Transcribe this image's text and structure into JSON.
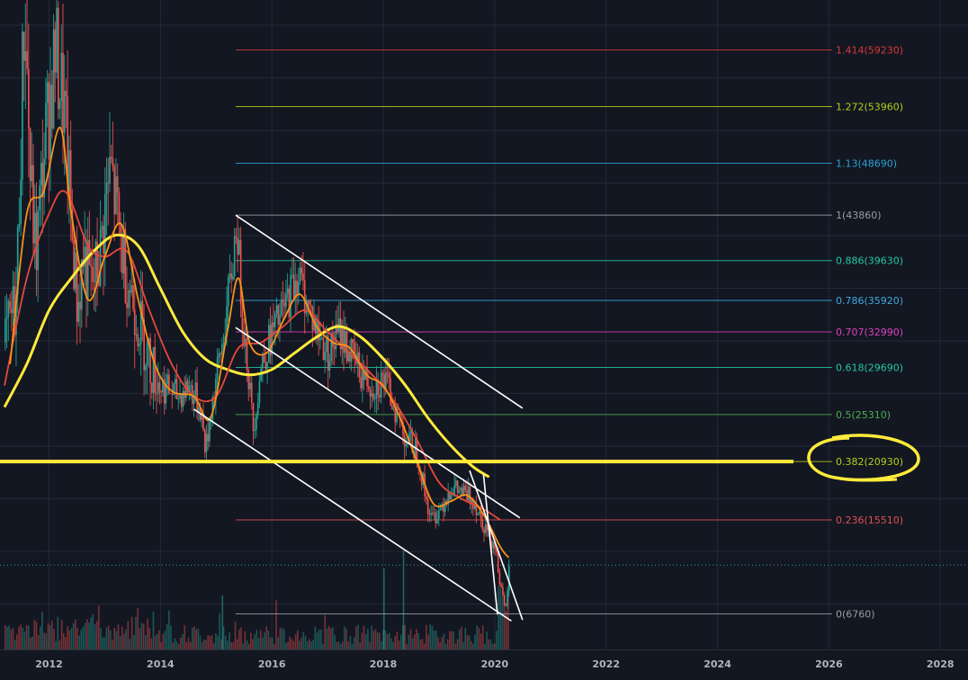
{
  "chart_data": {
    "type": "candlestick",
    "x_ticks": [
      "2012",
      "2014",
      "2016",
      "2018",
      "2020",
      "2022",
      "2024",
      "2026",
      "2028"
    ],
    "x_range": [
      2011.2,
      2028.4
    ],
    "y_range": [
      2500,
      65000
    ],
    "grid": true,
    "colors": {
      "background": "#131722",
      "grid": "#232838",
      "up": "#26a69a",
      "down": "#ef5350",
      "ma_fast": "#f7931a",
      "ma_mid": "#e8483a",
      "ma_slow": "#ffeb3b",
      "channel": "#ffffff",
      "highlight": "#ffeb3b",
      "current_price": "#26a69a"
    },
    "fib_levels": [
      {
        "ratio": "1.414",
        "value": 59230,
        "label": "1.414(59230)",
        "color": "#d63a3a"
      },
      {
        "ratio": "1.272",
        "value": 53960,
        "label": "1.272(53960)",
        "color": "#b5cc18"
      },
      {
        "ratio": "1.13",
        "value": 48690,
        "label": "1.13(48690)",
        "color": "#2a9fd6"
      },
      {
        "ratio": "1",
        "value": 43860,
        "label": "1(43860)",
        "color": "#9a9ea8"
      },
      {
        "ratio": "0.886",
        "value": 39630,
        "label": "0.886(39630)",
        "color": "#26c6a0"
      },
      {
        "ratio": "0.786",
        "value": 35920,
        "label": "0.786(35920)",
        "color": "#3fa9e0"
      },
      {
        "ratio": "0.707",
        "value": 32990,
        "label": "0.707(32990)",
        "color": "#e040c0"
      },
      {
        "ratio": "0.618",
        "value": 29690,
        "label": "0.618(29690)",
        "color": "#26c6a0"
      },
      {
        "ratio": "0.5",
        "value": 25310,
        "label": "0.5(25310)",
        "color": "#4caf50"
      },
      {
        "ratio": "0.382",
        "value": 20930,
        "label": "0.382(20930)",
        "color": "#b5cc18"
      },
      {
        "ratio": "0.236",
        "value": 15510,
        "label": "0.236(15510)",
        "color": "#e05050"
      },
      {
        "ratio": "0",
        "value": 6760,
        "label": "0(6760)",
        "color": "#9a9ea8"
      }
    ],
    "fib_start_x": 2015.35,
    "highlight_level": 20930,
    "current_price": 11300,
    "price_path": [
      [
        2011.2,
        32000
      ],
      [
        2011.4,
        36000
      ],
      [
        2011.5,
        55000
      ],
      [
        2011.55,
        64000
      ],
      [
        2011.65,
        47000
      ],
      [
        2011.75,
        40000
      ],
      [
        2011.9,
        50000
      ],
      [
        2012.1,
        59000
      ],
      [
        2012.25,
        54000
      ],
      [
        2012.4,
        42000
      ],
      [
        2012.5,
        35000
      ],
      [
        2012.6,
        40000
      ],
      [
        2012.75,
        37000
      ],
      [
        2012.9,
        40000
      ],
      [
        2013.0,
        45000
      ],
      [
        2013.1,
        48000
      ],
      [
        2013.25,
        42000
      ],
      [
        2013.4,
        38000
      ],
      [
        2013.6,
        34000
      ],
      [
        2013.8,
        30000
      ],
      [
        2014.0,
        28000
      ],
      [
        2014.3,
        27000
      ],
      [
        2014.5,
        28000
      ],
      [
        2014.7,
        26000
      ],
      [
        2014.8,
        22000
      ],
      [
        2014.9,
        26000
      ],
      [
        2015.1,
        32000
      ],
      [
        2015.3,
        40000
      ],
      [
        2015.35,
        43860
      ],
      [
        2015.45,
        35000
      ],
      [
        2015.55,
        30000
      ],
      [
        2015.65,
        24000
      ],
      [
        2015.8,
        30000
      ],
      [
        2016.0,
        33000
      ],
      [
        2016.2,
        35000
      ],
      [
        2016.45,
        38500
      ],
      [
        2016.6,
        36000
      ],
      [
        2016.8,
        33000
      ],
      [
        2017.0,
        31000
      ],
      [
        2017.2,
        33000
      ],
      [
        2017.4,
        31000
      ],
      [
        2017.6,
        29000
      ],
      [
        2017.8,
        28000
      ],
      [
        2018.0,
        28500
      ],
      [
        2018.2,
        26000
      ],
      [
        2018.4,
        23000
      ],
      [
        2018.6,
        22000
      ],
      [
        2018.75,
        17500
      ],
      [
        2018.85,
        15500
      ],
      [
        2019.0,
        16500
      ],
      [
        2019.2,
        18500
      ],
      [
        2019.4,
        18000
      ],
      [
        2019.6,
        17500
      ],
      [
        2019.8,
        15000
      ],
      [
        2020.0,
        13000
      ],
      [
        2020.1,
        9000
      ],
      [
        2020.18,
        6760
      ],
      [
        2020.25,
        11300
      ]
    ],
    "ma_fast": [
      [
        2011.3,
        30000
      ],
      [
        2011.6,
        44000
      ],
      [
        2011.9,
        46000
      ],
      [
        2012.2,
        52000
      ],
      [
        2012.4,
        44000
      ],
      [
        2012.7,
        36000
      ],
      [
        2013.0,
        40000
      ],
      [
        2013.3,
        43000
      ],
      [
        2013.6,
        36000
      ],
      [
        2013.9,
        30000
      ],
      [
        2014.2,
        27500
      ],
      [
        2014.6,
        27000
      ],
      [
        2014.9,
        25000
      ],
      [
        2015.2,
        33000
      ],
      [
        2015.4,
        38000
      ],
      [
        2015.6,
        32000
      ],
      [
        2015.9,
        31000
      ],
      [
        2016.2,
        34000
      ],
      [
        2016.5,
        36500
      ],
      [
        2016.8,
        33500
      ],
      [
        2017.1,
        32000
      ],
      [
        2017.4,
        31500
      ],
      [
        2017.7,
        29000
      ],
      [
        2018.0,
        28000
      ],
      [
        2018.3,
        25000
      ],
      [
        2018.6,
        21000
      ],
      [
        2018.9,
        17000
      ],
      [
        2019.2,
        17200
      ],
      [
        2019.5,
        17800
      ],
      [
        2019.8,
        16000
      ],
      [
        2020.1,
        13000
      ],
      [
        2020.25,
        12000
      ]
    ],
    "ma_mid": [
      [
        2011.2,
        28000
      ],
      [
        2011.6,
        38000
      ],
      [
        2012.0,
        44000
      ],
      [
        2012.3,
        46000
      ],
      [
        2012.7,
        41000
      ],
      [
        2013.0,
        40000
      ],
      [
        2013.4,
        40500
      ],
      [
        2013.8,
        35000
      ],
      [
        2014.2,
        30000
      ],
      [
        2014.6,
        27000
      ],
      [
        2015.0,
        27000
      ],
      [
        2015.4,
        31500
      ],
      [
        2015.8,
        32000
      ],
      [
        2016.2,
        33500
      ],
      [
        2016.6,
        35000
      ],
      [
        2017.0,
        33000
      ],
      [
        2017.4,
        31000
      ],
      [
        2017.8,
        29000
      ],
      [
        2018.2,
        26500
      ],
      [
        2018.6,
        23000
      ],
      [
        2019.0,
        19000
      ],
      [
        2019.4,
        17500
      ],
      [
        2019.8,
        16500
      ],
      [
        2020.1,
        15500
      ]
    ],
    "ma_slow": [
      [
        2011.2,
        26000
      ],
      [
        2011.6,
        30000
      ],
      [
        2012.0,
        35000
      ],
      [
        2012.4,
        38000
      ],
      [
        2012.8,
        40500
      ],
      [
        2013.2,
        42000
      ],
      [
        2013.6,
        41000
      ],
      [
        2014.0,
        37000
      ],
      [
        2014.4,
        33000
      ],
      [
        2014.8,
        30500
      ],
      [
        2015.2,
        29500
      ],
      [
        2015.6,
        29000
      ],
      [
        2016.0,
        29500
      ],
      [
        2016.4,
        31000
      ],
      [
        2016.8,
        32500
      ],
      [
        2017.2,
        33500
      ],
      [
        2017.6,
        32500
      ],
      [
        2018.0,
        30500
      ],
      [
        2018.4,
        28000
      ],
      [
        2018.8,
        25000
      ],
      [
        2019.2,
        22500
      ],
      [
        2019.6,
        20500
      ],
      [
        2019.9,
        19500
      ]
    ],
    "channels": [
      [
        [
          2015.35,
          43860
        ],
        [
          2020.5,
          25900
        ]
      ],
      [
        [
          2015.35,
          33400
        ],
        [
          2020.45,
          15700
        ]
      ],
      [
        [
          2014.6,
          25800
        ],
        [
          2020.3,
          6100
        ]
      ],
      [
        [
          2019.55,
          20100
        ],
        [
          2020.5,
          6200
        ]
      ],
      [
        [
          2019.8,
          19700
        ],
        [
          2020.05,
          6700
        ]
      ]
    ]
  }
}
